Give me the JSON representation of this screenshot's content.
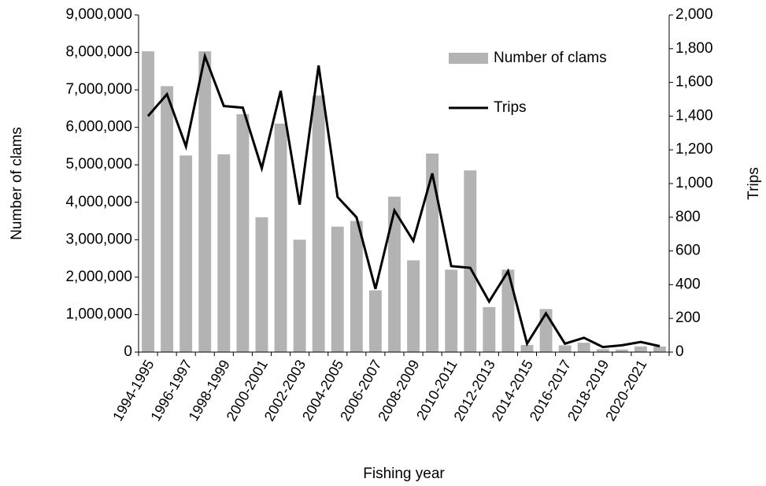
{
  "chart_data": {
    "type": "bar",
    "x_label": "Fishing year",
    "y_label": "Number of clams",
    "y2_label": "Trips",
    "categories": [
      "1994-1995",
      null,
      "1996-1997",
      null,
      "1998-1999",
      null,
      "2000-2001",
      null,
      "2002-2003",
      null,
      "2004-2005",
      null,
      "2006-2007",
      null,
      "2008-2009",
      null,
      "2010-2011",
      null,
      "2012-2013",
      null,
      "2014-2015",
      null,
      "2016-2017",
      null,
      "2018-2019",
      null,
      "2020-2021",
      null
    ],
    "series": [
      {
        "name": "Number of clams",
        "type": "bar",
        "color": "#b3b3b3",
        "axis": "y",
        "values": [
          8030000,
          7100000,
          5250000,
          8030000,
          5280000,
          6350000,
          3600000,
          6100000,
          3000000,
          6850000,
          3350000,
          3500000,
          1650000,
          4150000,
          2450000,
          5300000,
          2200000,
          4850000,
          1200000,
          2200000,
          190000,
          1150000,
          180000,
          250000,
          80000,
          70000,
          150000,
          150000
        ]
      },
      {
        "name": "Trips",
        "type": "line",
        "color": "#000000",
        "axis": "y2",
        "values": [
          1400,
          1530,
          1220,
          1755,
          1460,
          1450,
          1090,
          1550,
          875,
          1700,
          920,
          800,
          375,
          840,
          660,
          1060,
          510,
          500,
          300,
          480,
          50,
          230,
          50,
          85,
          30,
          40,
          60,
          35
        ]
      }
    ],
    "ylim": [
      0,
      9000000
    ],
    "yticks": [
      0,
      {
        "value": 1000000,
        "label": "1,000,000"
      },
      {
        "value": 2000000,
        "label": "2,000,000"
      },
      {
        "value": 3000000,
        "label": "3,000,000"
      },
      {
        "value": 4000000,
        "label": "4,000,000"
      },
      {
        "value": 5000000,
        "label": "5,000,000"
      },
      {
        "value": 6000000,
        "label": "6,000,000"
      },
      {
        "value": 7000000,
        "label": "7,000,000"
      },
      {
        "value": 8000000,
        "label": "8,000,000"
      },
      {
        "value": 9000000,
        "label": "9,000,000"
      }
    ],
    "y2lim": [
      0,
      2000
    ],
    "y2ticks": [
      0,
      200,
      400,
      600,
      800,
      {
        "value": 1000,
        "label": "1,000"
      },
      {
        "value": 1200,
        "label": "1,200"
      },
      {
        "value": 1400,
        "label": "1,400"
      },
      {
        "value": 1600,
        "label": "1,600"
      },
      {
        "value": 1800,
        "label": "1,800"
      },
      {
        "value": 2000,
        "label": "2,000"
      }
    ],
    "legend": "top-right",
    "grid": false
  }
}
